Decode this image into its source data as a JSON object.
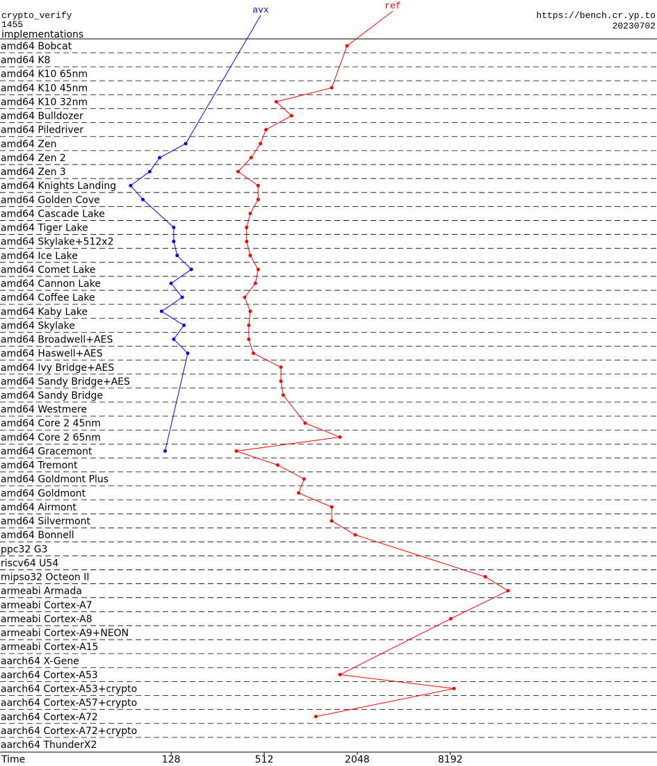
{
  "chart_data": {
    "type": "line",
    "title": "crypto_verify",
    "subtitle": "1455",
    "caption": "implementations",
    "source": "https://bench.cr.yp.to",
    "date": "20230702",
    "x_label": "Time",
    "xscale": "log2",
    "xlim": [
      10,
      178000
    ],
    "xticks": [
      128,
      512,
      2048,
      8192
    ],
    "categories": [
      "amd64 Bobcat",
      "amd64 K8",
      "amd64 K10 65nm",
      "amd64 K10 45nm",
      "amd64 K10 32nm",
      "amd64 Bulldozer",
      "amd64 Piledriver",
      "amd64 Zen",
      "amd64 Zen 2",
      "amd64 Zen 3",
      "amd64 Knights Landing",
      "amd64 Golden Cove",
      "amd64 Cascade Lake",
      "amd64 Tiger Lake",
      "amd64 Skylake+512x2",
      "amd64 Ice Lake",
      "amd64 Comet Lake",
      "amd64 Cannon Lake",
      "amd64 Coffee Lake",
      "amd64 Kaby Lake",
      "amd64 Skylake",
      "amd64 Broadwell+AES",
      "amd64 Haswell+AES",
      "amd64 Ivy Bridge+AES",
      "amd64 Sandy Bridge+AES",
      "amd64 Sandy Bridge",
      "amd64 Westmere",
      "amd64 Core 2 45nm",
      "amd64 Core 2 65nm",
      "amd64 Gracemont",
      "amd64 Tremont",
      "amd64 Goldmont Plus",
      "amd64 Goldmont",
      "amd64 Airmont",
      "amd64 Silvermont",
      "amd64 Bonnell",
      "ppc32 G3",
      "riscv64 U54",
      "mipso32 Octeon II",
      "armeabi Armada",
      "armeabi Cortex-A7",
      "armeabi Cortex-A8",
      "armeabi Cortex-A9+NEON",
      "armeabi Cortex-A15",
      "aarch64 X-Gene",
      "aarch64 Cortex-A53",
      "aarch64 Cortex-A53+crypto",
      "aarch64 Cortex-A57+crypto",
      "aarch64 Cortex-A72",
      "aarch64 Cortex-A72+crypto",
      "aarch64 ThunderX2"
    ],
    "series": [
      {
        "name": "avx",
        "color": "#0000ff",
        "values": [
          null,
          null,
          null,
          null,
          null,
          null,
          null,
          159,
          108,
          93,
          70,
          84,
          null,
          133,
          133,
          140,
          173,
          128,
          151,
          111,
          155,
          133,
          164,
          null,
          null,
          null,
          null,
          null,
          null,
          117,
          null,
          null,
          null,
          null,
          null,
          null,
          null,
          null,
          null,
          null,
          null,
          null,
          null,
          null,
          null,
          null,
          null,
          null,
          null,
          null,
          null
        ]
      },
      {
        "name": "ref",
        "color": "#ff0000",
        "values": [
          1760,
          null,
          null,
          1400,
          613,
          770,
          526,
          484,
          422,
          347,
          468,
          468,
          416,
          394,
          394,
          416,
          468,
          449,
          383,
          416,
          407,
          407,
          436,
          657,
          657,
          680,
          null,
          942,
          1584,
          338,
          626,
          928,
          855,
          1400,
          1400,
          1990,
          null,
          null,
          13800,
          19350,
          null,
          8250,
          null,
          null,
          null,
          1584,
          8660,
          null,
          1105,
          null,
          null
        ]
      }
    ]
  }
}
